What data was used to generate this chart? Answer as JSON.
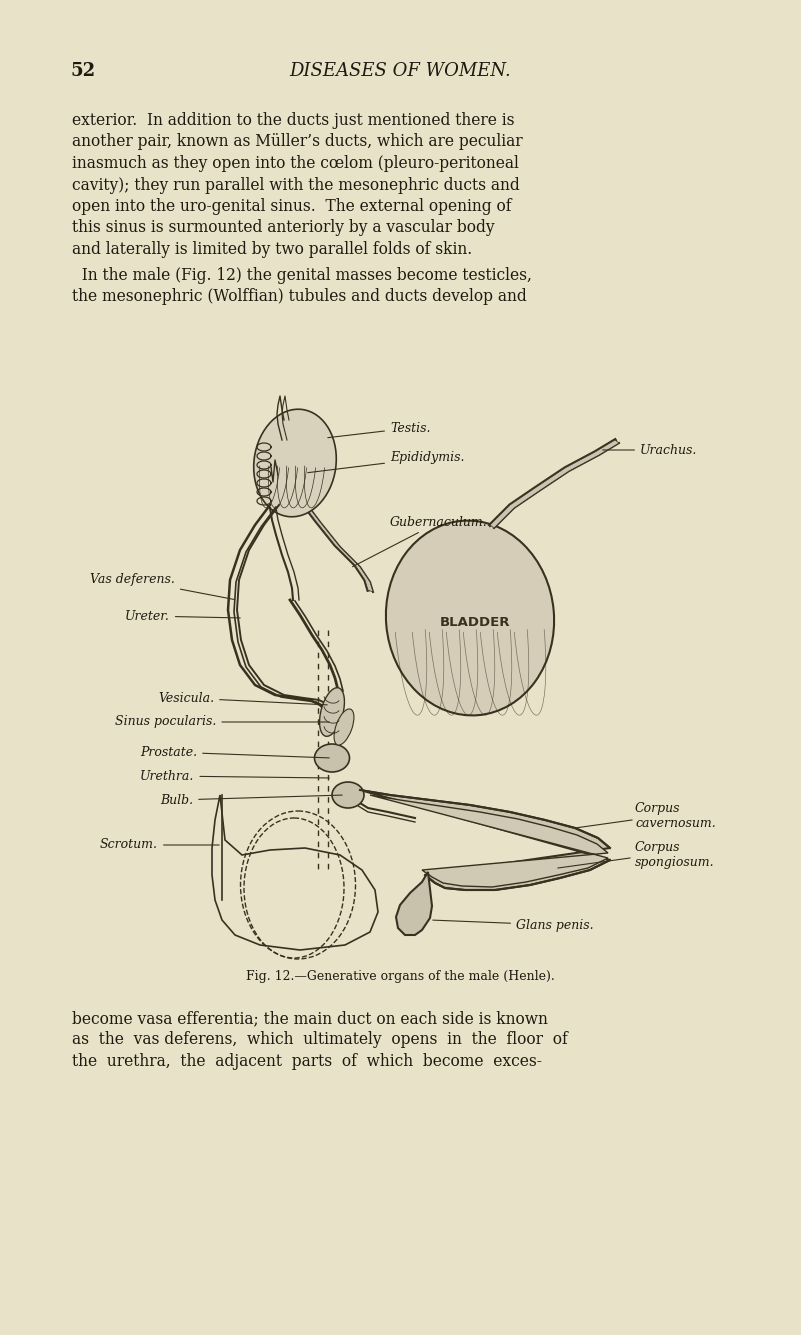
{
  "background_color": "#e8e3c8",
  "page_number": "52",
  "header_title": "DISEASES OF WOMEN.",
  "header_fontsize": 13,
  "page_number_fontsize": 13,
  "body_text_fontsize": 11.2,
  "caption_fontsize": 9.0,
  "text_color": "#1e1a10",
  "p1_lines": [
    "exterior.  In addition to the ducts just mentioned there is",
    "another pair, known as Müller’s ducts, which are peculiar",
    "inasmuch as they open into the cœlom (pleuro-peritoneal",
    "cavity); they run parallel with the mesonephric ducts and",
    "open into the uro-genital sinus.  The external opening of",
    "this sinus is surmounted anteriorly by a vascular body",
    "and laterally is limited by two parallel folds of skin."
  ],
  "p2_lines": [
    "  In the male (Fig. 12) the genital masses become testicles,",
    "the mesonephric (Wolffian) tubules and ducts develop and"
  ],
  "p3_lines": [
    "become vasa efferentia; the main duct on each side is known",
    "as  the  vas deferens,  which  ultimately  opens  in  the  floor  of",
    "the  urethra,  the  adjacent  parts  of  which  become  exces-"
  ],
  "figure_caption": "Fig. 12.—Generative organs of the male (Henle).",
  "line_color": "#3a3020",
  "fill_light": "#d4cdb0",
  "fill_medium": "#b8b098",
  "fill_dark": "#8a8070"
}
